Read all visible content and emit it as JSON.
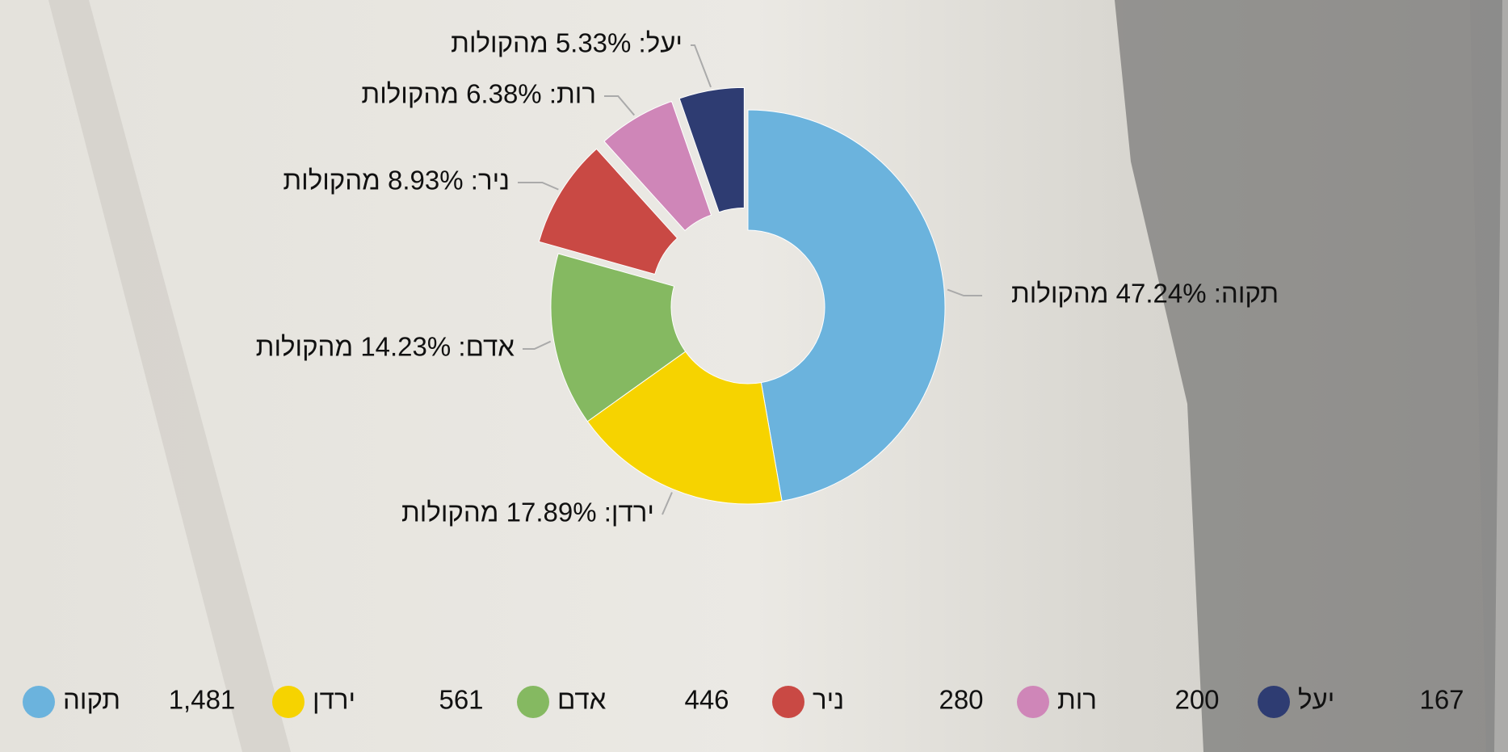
{
  "chart_data": {
    "type": "donut",
    "categories": [
      "תקוה",
      "ירדן",
      "אדם",
      "ניר",
      "רות",
      "יעל"
    ],
    "values": [
      1481,
      561,
      446,
      280,
      200,
      167
    ],
    "value_labels": [
      "1,481",
      "561",
      "446",
      "280",
      "200",
      "167"
    ],
    "slice_labels": [
      "תקוה: 47.24% מהקולות",
      "ירדן: 17.89% מהקולות",
      "אדם: 14.23% מהקולות",
      "ניר: 8.93% מהקולות",
      "רות: 6.38% מהקולות",
      "יעל: 5.33% מהקולות"
    ],
    "colors": [
      "#6bb3dd",
      "#f6d300",
      "#85b961",
      "#c94944",
      "#cf86b8",
      "#2e3c72"
    ],
    "exploded": [
      false,
      false,
      false,
      true,
      true,
      true
    ]
  }
}
